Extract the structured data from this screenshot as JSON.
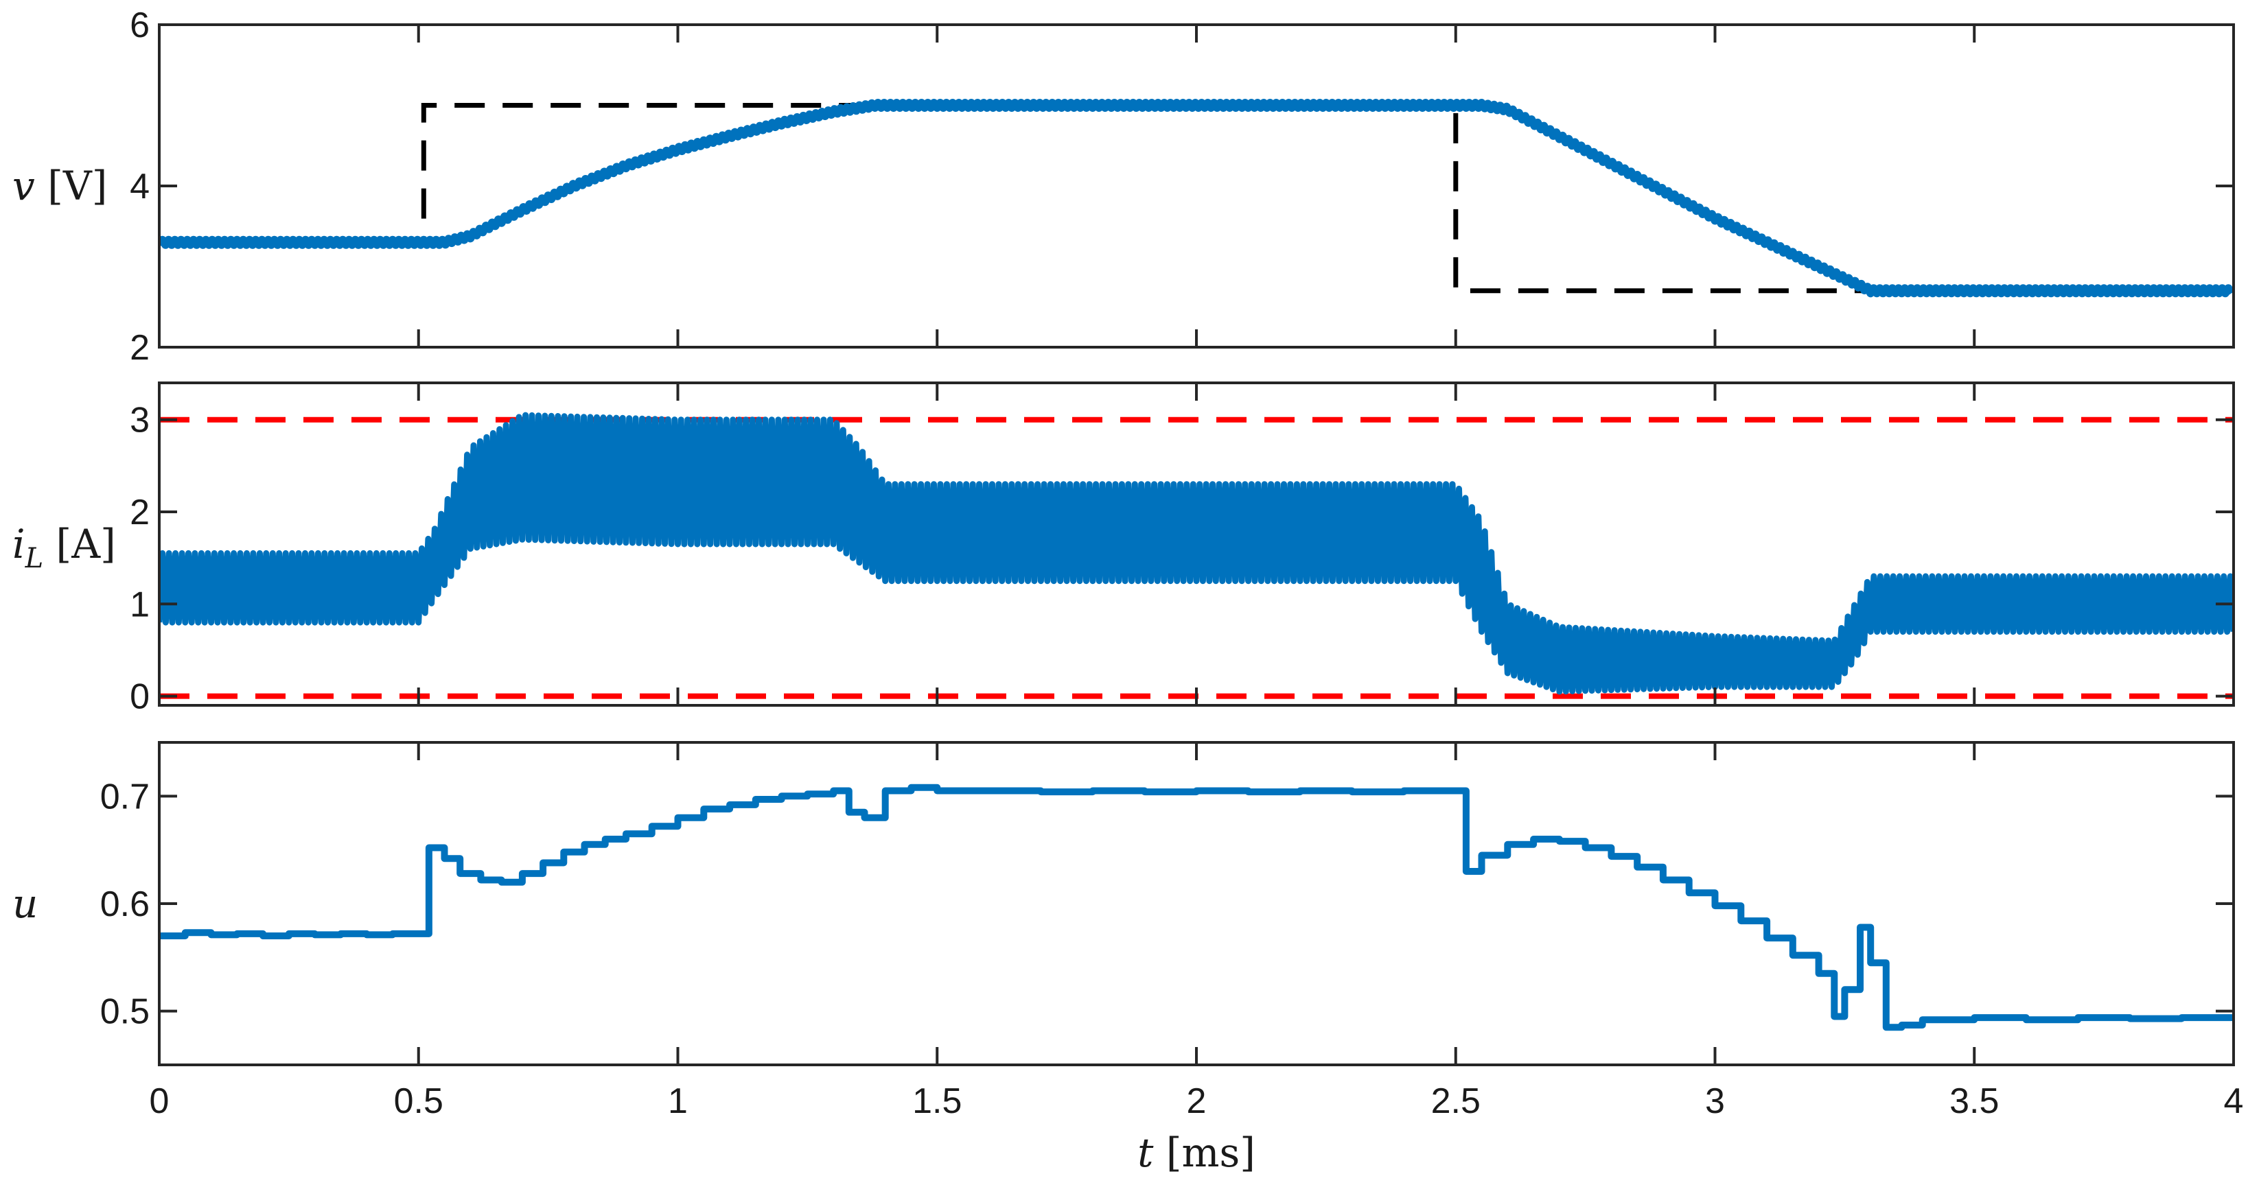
{
  "chart_data": [
    {
      "type": "line",
      "ylabel": "v [V]",
      "ylabel_parts": {
        "symbol": "v",
        "sub": "",
        "unit": "[V]"
      },
      "xlim": [
        0,
        4
      ],
      "ylim": [
        2,
        6
      ],
      "yticks": [
        2,
        4,
        6
      ],
      "ytick_labels": [
        "2",
        "4",
        "6"
      ],
      "grid": false,
      "series": [
        {
          "style": "dashed",
          "color": "#000000",
          "kind": "reference",
          "x": [
            0,
            0.51,
            0.51,
            2.5,
            2.5,
            4
          ],
          "y": [
            3.3,
            3.3,
            5.0,
            5.0,
            2.7,
            2.7
          ]
        },
        {
          "style": "solid",
          "color": "#0072BD",
          "kind": "response",
          "ripple": 0.03,
          "x": [
            0,
            0.5,
            0.55,
            0.6,
            0.7,
            0.8,
            0.9,
            1.0,
            1.1,
            1.2,
            1.3,
            1.38,
            2.5,
            2.55,
            2.6,
            3.0,
            3.3,
            4.0
          ],
          "y": [
            3.3,
            3.3,
            3.3,
            3.38,
            3.7,
            4.0,
            4.25,
            4.45,
            4.62,
            4.78,
            4.92,
            5.0,
            5.0,
            5.0,
            4.95,
            3.6,
            2.7,
            2.7
          ]
        }
      ]
    },
    {
      "type": "line",
      "ylabel": "i_L [A]",
      "ylabel_parts": {
        "symbol": "i",
        "sub": "L",
        "unit": "[A]"
      },
      "xlim": [
        0,
        4
      ],
      "ylim": [
        -0.1,
        3.4
      ],
      "yticks": [
        0,
        1,
        2,
        3
      ],
      "ytick_labels": [
        "0",
        "1",
        "2",
        "3"
      ],
      "grid": false,
      "series": [
        {
          "style": "dashed",
          "color": "#FF0000",
          "kind": "limit",
          "x": [
            0,
            4
          ],
          "y": [
            3,
            3
          ]
        },
        {
          "style": "dashed",
          "color": "#FF0000",
          "kind": "limit",
          "x": [
            0,
            4
          ],
          "y": [
            0,
            0
          ]
        },
        {
          "style": "band",
          "color": "#0072BD",
          "kind": "ripple-envelope",
          "x": [
            0,
            0.5,
            0.53,
            0.6,
            0.7,
            1.0,
            1.3,
            1.35,
            1.4,
            2.5,
            2.55,
            2.6,
            2.7,
            3.0,
            3.23,
            3.27,
            3.3,
            4.0
          ],
          "upper": [
            1.55,
            1.55,
            1.8,
            2.7,
            3.05,
            3.0,
            3.0,
            2.7,
            2.3,
            2.3,
            1.9,
            1.0,
            0.75,
            0.65,
            0.6,
            1.0,
            1.3,
            1.3
          ],
          "lower": [
            0.8,
            0.8,
            1.05,
            1.6,
            1.7,
            1.65,
            1.65,
            1.45,
            1.25,
            1.25,
            0.7,
            0.25,
            0.05,
            0.1,
            0.1,
            0.4,
            0.7,
            0.7
          ]
        }
      ]
    },
    {
      "type": "line",
      "ylabel": "u",
      "ylabel_parts": {
        "symbol": "u",
        "sub": "",
        "unit": ""
      },
      "xlabel": "t [ms]",
      "xlabel_parts": {
        "symbol": "t",
        "unit": "[ms]"
      },
      "xlim": [
        0,
        4
      ],
      "ylim": [
        0.45,
        0.75
      ],
      "xticks": [
        0,
        0.5,
        1,
        1.5,
        2,
        2.5,
        3,
        3.5,
        4
      ],
      "xtick_labels": [
        "0",
        "0.5",
        "1",
        "1.5",
        "2",
        "2.5",
        "3",
        "3.5",
        "4"
      ],
      "yticks": [
        0.5,
        0.6,
        0.7
      ],
      "ytick_labels": [
        "0.5",
        "0.6",
        "0.7"
      ],
      "grid": false,
      "series": [
        {
          "style": "stairs",
          "color": "#0072BD",
          "kind": "control",
          "x": [
            0,
            0.05,
            0.1,
            0.15,
            0.2,
            0.25,
            0.3,
            0.35,
            0.4,
            0.45,
            0.5,
            0.52,
            0.55,
            0.58,
            0.62,
            0.66,
            0.7,
            0.74,
            0.78,
            0.82,
            0.86,
            0.9,
            0.95,
            1.0,
            1.05,
            1.1,
            1.15,
            1.2,
            1.25,
            1.3,
            1.33,
            1.36,
            1.4,
            1.45,
            1.5,
            1.6,
            1.7,
            1.8,
            1.9,
            2.0,
            2.1,
            2.2,
            2.3,
            2.4,
            2.5,
            2.52,
            2.55,
            2.6,
            2.65,
            2.7,
            2.75,
            2.8,
            2.85,
            2.9,
            2.95,
            3.0,
            3.05,
            3.1,
            3.15,
            3.2,
            3.23,
            3.25,
            3.28,
            3.3,
            3.33,
            3.36,
            3.4,
            3.5,
            3.6,
            3.7,
            3.8,
            3.9,
            4.0
          ],
          "y": [
            0.57,
            0.573,
            0.571,
            0.572,
            0.57,
            0.572,
            0.571,
            0.572,
            0.571,
            0.572,
            0.572,
            0.652,
            0.642,
            0.628,
            0.622,
            0.62,
            0.628,
            0.638,
            0.648,
            0.655,
            0.66,
            0.665,
            0.672,
            0.68,
            0.688,
            0.692,
            0.697,
            0.7,
            0.702,
            0.705,
            0.685,
            0.68,
            0.705,
            0.708,
            0.705,
            0.705,
            0.704,
            0.705,
            0.704,
            0.705,
            0.704,
            0.705,
            0.704,
            0.705,
            0.705,
            0.63,
            0.645,
            0.655,
            0.66,
            0.658,
            0.652,
            0.644,
            0.634,
            0.622,
            0.61,
            0.598,
            0.584,
            0.568,
            0.552,
            0.535,
            0.495,
            0.52,
            0.578,
            0.545,
            0.485,
            0.487,
            0.492,
            0.494,
            0.492,
            0.494,
            0.493,
            0.494,
            0.497
          ]
        }
      ]
    }
  ]
}
